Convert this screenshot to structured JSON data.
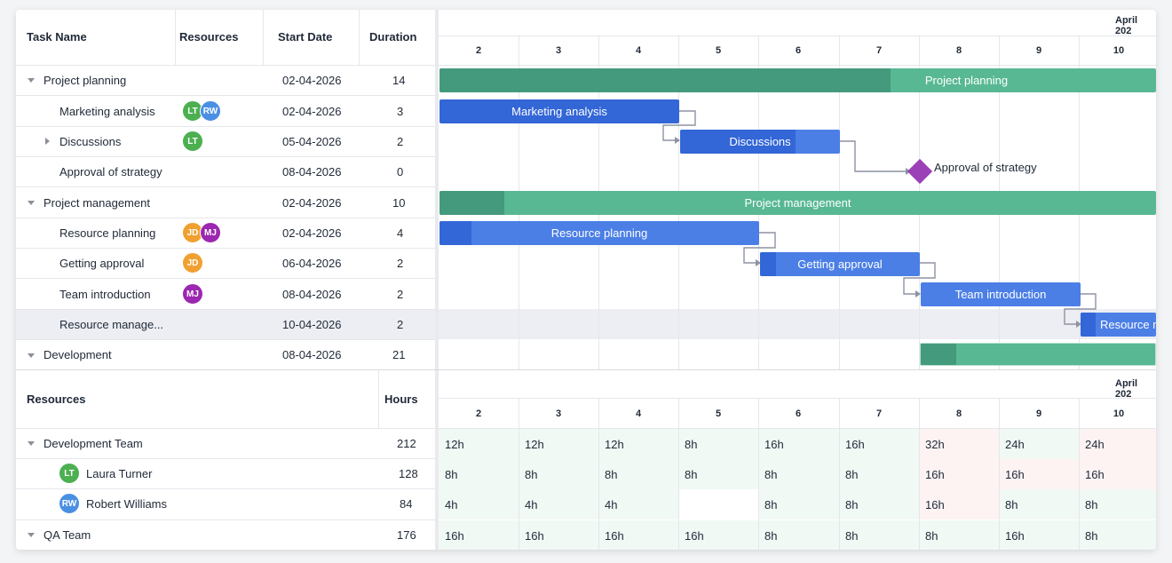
{
  "gantt": {
    "grid_headers": {
      "task_name": "Task Name",
      "resources": "Resources",
      "start_date": "Start Date",
      "duration": "Duration"
    },
    "month_label": "April 202",
    "days": [
      "2",
      "3",
      "4",
      "5",
      "6",
      "7",
      "8",
      "9",
      "10"
    ],
    "rows": [
      {
        "name": "Project planning",
        "start": "02-04-2026",
        "duration": "14"
      },
      {
        "name": "Marketing analysis",
        "start": "02-04-2026",
        "duration": "3"
      },
      {
        "name": "Discussions",
        "start": "05-04-2026",
        "duration": "2"
      },
      {
        "name": "Approval of strategy",
        "start": "08-04-2026",
        "duration": "0"
      },
      {
        "name": "Project management",
        "start": "02-04-2026",
        "duration": "10"
      },
      {
        "name": "Resource planning",
        "start": "02-04-2026",
        "duration": "4"
      },
      {
        "name": "Getting approval",
        "start": "06-04-2026",
        "duration": "2"
      },
      {
        "name": "Team introduction",
        "start": "08-04-2026",
        "duration": "2"
      },
      {
        "name": "Resource manage...",
        "start": "10-04-2026",
        "duration": "2"
      },
      {
        "name": "Development",
        "start": "08-04-2026",
        "duration": "21"
      }
    ],
    "avatars": {
      "lt": "LT",
      "rw": "RW",
      "jd": "JD",
      "mj": "MJ"
    },
    "bars": {
      "project_planning": "Project planning",
      "marketing_analysis": "Marketing analysis",
      "discussions": "Discussions",
      "approval": "Approval of strategy",
      "project_management": "Project management",
      "resource_planning": "Resource planning",
      "getting_approval": "Getting approval",
      "team_introduction": "Team introduction",
      "resource_manage": "Resource m"
    },
    "progress": {
      "project_planning": 0.63,
      "discussions": 0.72,
      "project_management": 0.1,
      "resource_planning": 0.1,
      "getting_approval": 0.1,
      "resource_manage": 0.2,
      "development": 0.15
    }
  },
  "resources": {
    "headers": {
      "resources": "Resources",
      "hours": "Hours"
    },
    "month_label": "April 202",
    "days": [
      "2",
      "3",
      "4",
      "5",
      "6",
      "7",
      "8",
      "9",
      "10"
    ],
    "rows": [
      {
        "name": "Development Team",
        "hours": "212",
        "cells": [
          "12h",
          "12h",
          "12h",
          "8h",
          "16h",
          "16h",
          "32h",
          "24h",
          "24h"
        ]
      },
      {
        "name": "Laura Turner",
        "hours": "128",
        "cells": [
          "8h",
          "8h",
          "8h",
          "8h",
          "8h",
          "8h",
          "16h",
          "16h",
          "16h"
        ]
      },
      {
        "name": "Robert Williams",
        "hours": "84",
        "cells": [
          "4h",
          "4h",
          "4h",
          "",
          "8h",
          "8h",
          "16h",
          "8h",
          "8h"
        ]
      },
      {
        "name": "QA Team",
        "hours": "176",
        "cells": [
          "16h",
          "16h",
          "16h",
          "16h",
          "8h",
          "8h",
          "8h",
          "16h",
          "8h"
        ]
      }
    ],
    "avatars": {
      "lt": "LT",
      "rw": "RW"
    }
  },
  "colors": {
    "summary_bar": "#58b894",
    "summary_progress": "#449a7c",
    "task_bar": "#4b7fe6",
    "task_progress": "#3366d6",
    "milestone": "#9b40b6",
    "avatar_lt": "#4caf50",
    "avatar_rw": "#4a90e2",
    "avatar_jd": "#f0a030",
    "avatar_mj": "#9c27b0",
    "overload_cell": "#fdf3f3",
    "normal_cell": "#f1f9f5"
  }
}
